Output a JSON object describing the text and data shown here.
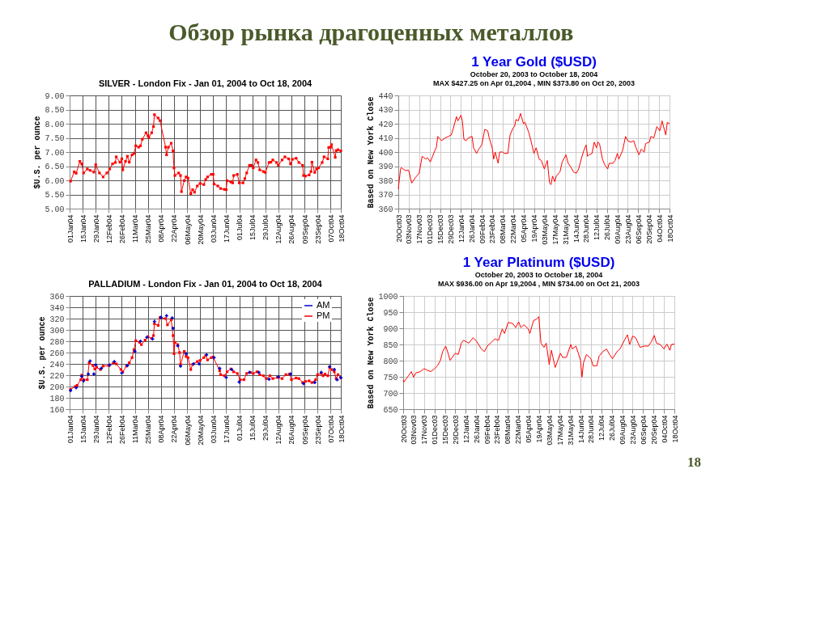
{
  "chart_data": [
    {
      "type": "other",
      "title": "Обзор рынка драгоценных металлов",
      "annotations": [
        "18"
      ]
    },
    {
      "type": "line",
      "title": "SILVER - London Fix - Jan 01, 2004 to Oct 18, 2004",
      "ylabel": "$U.S. per ounce",
      "grid": true,
      "marker": "square",
      "xlim": [
        "2004-01-01",
        "2004-10-18"
      ],
      "xticks": [
        {
          "value": "2004-01-01",
          "label": "01Jan04"
        },
        {
          "value": "2004-01-15",
          "label": "15Jan04"
        },
        {
          "value": "2004-01-29",
          "label": "29Jan04"
        },
        {
          "value": "2004-02-12",
          "label": "12Feb04"
        },
        {
          "value": "2004-02-26",
          "label": "26Feb04"
        },
        {
          "value": "2004-03-11",
          "label": "11Mar04"
        },
        {
          "value": "2004-03-25",
          "label": "25Mar04"
        },
        {
          "value": "2004-04-08",
          "label": "08Apr04"
        },
        {
          "value": "2004-04-22",
          "label": "22Apr04"
        },
        {
          "value": "2004-05-06",
          "label": "06May04"
        },
        {
          "value": "2004-05-20",
          "label": "20May04"
        },
        {
          "value": "2004-06-03",
          "label": "03Jun04"
        },
        {
          "value": "2004-06-17",
          "label": "17Jun04"
        },
        {
          "value": "2004-07-01",
          "label": "01Jul04"
        },
        {
          "value": "2004-07-15",
          "label": "15Jul04"
        },
        {
          "value": "2004-07-29",
          "label": "29Jul04"
        },
        {
          "value": "2004-08-12",
          "label": "12Aug04"
        },
        {
          "value": "2004-08-26",
          "label": "26Aug04"
        },
        {
          "value": "2004-09-09",
          "label": "09Sep04"
        },
        {
          "value": "2004-09-23",
          "label": "23Sep04"
        },
        {
          "value": "2004-10-07",
          "label": "07Oct04"
        },
        {
          "value": "2004-10-18",
          "label": "18Oct04"
        }
      ],
      "ylim": [
        5,
        9
      ],
      "yticks": [
        {
          "value": 5,
          "label": "5.00"
        },
        {
          "value": 5.5,
          "label": "5.50"
        },
        {
          "value": 6,
          "label": "6.00"
        },
        {
          "value": 6.5,
          "label": "6.50"
        },
        {
          "value": 7,
          "label": "7.00"
        },
        {
          "value": 7.5,
          "label": "7.50"
        },
        {
          "value": 8,
          "label": "8.00"
        },
        {
          "value": 8.5,
          "label": "8.50"
        },
        {
          "value": 9,
          "label": "9.00"
        }
      ],
      "series": [
        {
          "color": "#ff0000",
          "x": [
            "2004-01-02",
            "2004-01-06",
            "2004-01-08",
            "2004-01-12",
            "2004-01-14",
            "2004-01-16",
            "2004-01-20",
            "2004-01-23",
            "2004-01-27",
            "2004-01-29",
            "2004-02-02",
            "2004-02-06",
            "2004-02-10",
            "2004-02-13",
            "2004-02-16",
            "2004-02-19",
            "2004-02-20",
            "2004-02-24",
            "2004-02-26",
            "2004-02-27",
            "2004-03-01",
            "2004-03-03",
            "2004-03-05",
            "2004-03-08",
            "2004-03-10",
            "2004-03-12",
            "2004-03-15",
            "2004-03-17",
            "2004-03-19",
            "2004-03-23",
            "2004-03-25",
            "2004-03-26",
            "2004-03-29",
            "2004-03-31",
            "2004-04-01",
            "2004-04-05",
            "2004-04-07",
            "2004-04-13",
            "2004-04-14",
            "2004-04-16",
            "2004-04-19",
            "2004-04-21",
            "2004-04-22",
            "2004-04-23",
            "2004-04-27",
            "2004-04-29",
            "2004-04-30",
            "2004-05-03",
            "2004-05-05",
            "2004-05-07",
            "2004-05-10",
            "2004-05-12",
            "2004-05-14",
            "2004-05-17",
            "2004-05-20",
            "2004-05-24",
            "2004-05-26",
            "2004-05-28",
            "2004-06-01",
            "2004-06-03",
            "2004-06-04",
            "2004-06-08",
            "2004-06-11",
            "2004-06-15",
            "2004-06-17",
            "2004-06-18",
            "2004-06-22",
            "2004-06-24",
            "2004-06-25",
            "2004-06-29",
            "2004-07-01",
            "2004-07-05",
            "2004-07-07",
            "2004-07-09",
            "2004-07-12",
            "2004-07-14",
            "2004-07-16",
            "2004-07-19",
            "2004-07-21",
            "2004-07-23",
            "2004-07-27",
            "2004-07-29",
            "2004-08-02",
            "2004-08-04",
            "2004-08-06",
            "2004-08-10",
            "2004-08-12",
            "2004-08-16",
            "2004-08-19",
            "2004-08-23",
            "2004-08-25",
            "2004-08-27",
            "2004-08-31",
            "2004-09-03",
            "2004-09-07",
            "2004-09-08",
            "2004-09-10",
            "2004-09-14",
            "2004-09-16",
            "2004-09-17",
            "2004-09-20",
            "2004-09-22",
            "2004-09-24",
            "2004-09-28",
            "2004-09-30",
            "2004-10-04",
            "2004-10-05",
            "2004-10-07",
            "2004-10-08",
            "2004-10-12",
            "2004-10-13",
            "2004-10-15",
            "2004-10-18"
          ],
          "values": [
            5.97,
            6.3,
            6.25,
            6.67,
            6.58,
            6.26,
            6.4,
            6.35,
            6.29,
            6.55,
            6.26,
            6.12,
            6.26,
            6.4,
            6.58,
            6.63,
            6.83,
            6.64,
            6.76,
            6.37,
            6.67,
            6.85,
            6.64,
            6.9,
            6.95,
            7.22,
            7.17,
            7.22,
            7.45,
            7.68,
            7.58,
            7.51,
            7.68,
            7.9,
            8.32,
            8.2,
            8.11,
            7.17,
            6.9,
            7.17,
            7.31,
            7.04,
            6.44,
            6.17,
            6.26,
            6.17,
            5.6,
            5.99,
            6.12,
            6.08,
            5.53,
            5.67,
            5.58,
            5.8,
            5.89,
            5.85,
            6.03,
            6.12,
            6.21,
            6.21,
            5.87,
            5.8,
            5.71,
            5.68,
            5.67,
            5.99,
            5.94,
            5.91,
            6.17,
            6.21,
            5.91,
            5.91,
            6.06,
            6.26,
            6.53,
            6.53,
            6.44,
            6.72,
            6.63,
            6.37,
            6.31,
            6.28,
            6.63,
            6.64,
            6.72,
            6.63,
            6.53,
            6.72,
            6.83,
            6.76,
            6.58,
            6.74,
            6.78,
            6.63,
            6.53,
            6.17,
            6.15,
            6.19,
            6.31,
            6.64,
            6.28,
            6.4,
            6.44,
            6.63,
            6.83,
            6.76,
            7.16,
            7.17,
            7.26,
            6.81,
            7.05,
            7.08,
            7.04
          ]
        }
      ]
    },
    {
      "type": "line",
      "title": "1 Year Gold ($USD)",
      "subtitle": "October 20, 2003 to October 18, 2004",
      "annotations": [
        "MAX $427.25 on Apr 01,2004 , MIN $373.80 on Oct 20, 2003"
      ],
      "ylabel": "Based on New York Close",
      "grid": true,
      "xlim": [
        "2003-10-20",
        "2004-10-18"
      ],
      "xticks": [
        {
          "value": "2003-10-20",
          "label": "20Oct03"
        },
        {
          "value": "2003-11-03",
          "label": "03Nov03"
        },
        {
          "value": "2003-11-17",
          "label": "17Nov03"
        },
        {
          "value": "2003-12-01",
          "label": "01Dec03"
        },
        {
          "value": "2003-12-15",
          "label": "15Dec03"
        },
        {
          "value": "2003-12-29",
          "label": "29Dec03"
        },
        {
          "value": "2004-01-12",
          "label": "12Jan04"
        },
        {
          "value": "2004-01-26",
          "label": "26Jan04"
        },
        {
          "value": "2004-02-09",
          "label": "09Feb04"
        },
        {
          "value": "2004-02-23",
          "label": "23Feb04"
        },
        {
          "value": "2004-03-08",
          "label": "08Mar04"
        },
        {
          "value": "2004-03-22",
          "label": "22Mar04"
        },
        {
          "value": "2004-04-05",
          "label": "05Apr04"
        },
        {
          "value": "2004-04-19",
          "label": "19Apr04"
        },
        {
          "value": "2004-05-03",
          "label": "03May04"
        },
        {
          "value": "2004-05-17",
          "label": "17May04"
        },
        {
          "value": "2004-05-31",
          "label": "31May04"
        },
        {
          "value": "2004-06-14",
          "label": "14Jun04"
        },
        {
          "value": "2004-06-28",
          "label": "28Jun04"
        },
        {
          "value": "2004-07-12",
          "label": "12Jul04"
        },
        {
          "value": "2004-07-26",
          "label": "26Jul04"
        },
        {
          "value": "2004-08-09",
          "label": "09Aug04"
        },
        {
          "value": "2004-08-23",
          "label": "23Aug04"
        },
        {
          "value": "2004-09-06",
          "label": "06Sep04"
        },
        {
          "value": "2004-09-20",
          "label": "20Sep04"
        },
        {
          "value": "2004-10-04",
          "label": "04Oct04"
        },
        {
          "value": "2004-10-18",
          "label": "18Oct04"
        }
      ],
      "ylim": [
        360,
        440
      ],
      "yticks": [
        360,
        370,
        380,
        390,
        400,
        410,
        420,
        430,
        440
      ],
      "series": [
        {
          "color": "#ff0000",
          "x": [
            "2003-10-20",
            "2003-10-23",
            "2003-10-24",
            "2003-10-29",
            "2003-11-03",
            "2003-11-07",
            "2003-11-12",
            "2003-11-17",
            "2003-11-21",
            "2003-11-26",
            "2003-11-28",
            "2003-12-02",
            "2003-12-05",
            "2003-12-08",
            "2003-12-10",
            "2003-12-12",
            "2003-12-17",
            "2003-12-22",
            "2003-12-26",
            "2003-12-30",
            "2004-01-02",
            "2004-01-06",
            "2004-01-08",
            "2004-01-12",
            "2004-01-14",
            "2004-01-16",
            "2004-01-19",
            "2004-01-22",
            "2004-01-27",
            "2004-01-29",
            "2004-02-02",
            "2004-02-05",
            "2004-02-09",
            "2004-02-13",
            "2004-02-17",
            "2004-02-19",
            "2004-02-23",
            "2004-02-25",
            "2004-02-27",
            "2004-03-02",
            "2004-03-04",
            "2004-03-08",
            "2004-03-10",
            "2004-03-15",
            "2004-03-18",
            "2004-03-22",
            "2004-03-24",
            "2004-03-26",
            "2004-03-29",
            "2004-04-01",
            "2004-04-05",
            "2004-04-07",
            "2004-04-12",
            "2004-04-15",
            "2004-04-19",
            "2004-04-22",
            "2004-04-26",
            "2004-04-29",
            "2004-05-03",
            "2004-05-05",
            "2004-05-07",
            "2004-05-10",
            "2004-05-12",
            "2004-05-14",
            "2004-05-17",
            "2004-05-19",
            "2004-05-24",
            "2004-05-27",
            "2004-06-01",
            "2004-06-04",
            "2004-06-08",
            "2004-06-11",
            "2004-06-15",
            "2004-06-18",
            "2004-06-22",
            "2004-06-25",
            "2004-06-28",
            "2004-06-30",
            "2004-07-02",
            "2004-07-06",
            "2004-07-09",
            "2004-07-12",
            "2004-07-14",
            "2004-07-16",
            "2004-07-20",
            "2004-07-23",
            "2004-07-27",
            "2004-07-29",
            "2004-08-03",
            "2004-08-06",
            "2004-08-09",
            "2004-08-11",
            "2004-08-16",
            "2004-08-20",
            "2004-08-23",
            "2004-08-27",
            "2004-08-31",
            "2004-09-03",
            "2004-09-07",
            "2004-09-10",
            "2004-09-14",
            "2004-09-16",
            "2004-09-21",
            "2004-09-23",
            "2004-09-27",
            "2004-10-01",
            "2004-10-05",
            "2004-10-08",
            "2004-10-11",
            "2004-10-13",
            "2004-10-15",
            "2004-10-18"
          ],
          "values": [
            373.8,
            388,
            389,
            387,
            387,
            378,
            382,
            385,
            397,
            395,
            396,
            393,
            397,
            401,
            403,
            411,
            408,
            410,
            411,
            412,
            417,
            425,
            422,
            426,
            422,
            409,
            408,
            410,
            411,
            403,
            399,
            402,
            405,
            416,
            415,
            410,
            403,
            395,
            400,
            392,
            400,
            400,
            399,
            399,
            412,
            417,
            418,
            423,
            422,
            427.25,
            420,
            421,
            414,
            408,
            399,
            403,
            395,
            394,
            388,
            391,
            394,
            378,
            377,
            383,
            379,
            383,
            386,
            393,
            398,
            392,
            389,
            386,
            385,
            388,
            396,
            401,
            405,
            397,
            398,
            399,
            407,
            403,
            407,
            406,
            395,
            391,
            388,
            392,
            392,
            394,
            399,
            395,
            401,
            411,
            408,
            407,
            408,
            403,
            398,
            402,
            400,
            406,
            407,
            411,
            410,
            418,
            415,
            422,
            416,
            412,
            421,
            420
          ]
        }
      ]
    },
    {
      "type": "line",
      "title": "PALLADIUM - London Fix - Jan 01, 2004 to Oct 18, 2004",
      "ylabel": "$U.S. per ounce",
      "grid": true,
      "legend": "top right",
      "xlim": [
        "2004-01-01",
        "2004-10-18"
      ],
      "xticks": [
        {
          "value": "2004-01-01",
          "label": "01Jan04"
        },
        {
          "value": "2004-01-15",
          "label": "15Jan04"
        },
        {
          "value": "2004-01-29",
          "label": "29Jan04"
        },
        {
          "value": "2004-02-12",
          "label": "12Feb04"
        },
        {
          "value": "2004-02-26",
          "label": "26Feb04"
        },
        {
          "value": "2004-03-11",
          "label": "11Mar04"
        },
        {
          "value": "2004-03-25",
          "label": "25Mar04"
        },
        {
          "value": "2004-04-08",
          "label": "08Apr04"
        },
        {
          "value": "2004-04-22",
          "label": "22Apr04"
        },
        {
          "value": "2004-05-06",
          "label": "06May04"
        },
        {
          "value": "2004-05-20",
          "label": "20May04"
        },
        {
          "value": "2004-06-03",
          "label": "03Jun04"
        },
        {
          "value": "2004-06-17",
          "label": "17Jun04"
        },
        {
          "value": "2004-07-01",
          "label": "01Jul04"
        },
        {
          "value": "2004-07-15",
          "label": "15Jul04"
        },
        {
          "value": "2004-07-29",
          "label": "29Jul04"
        },
        {
          "value": "2004-08-12",
          "label": "12Aug04"
        },
        {
          "value": "2004-08-26",
          "label": "26Aug04"
        },
        {
          "value": "2004-09-09",
          "label": "09Sep04"
        },
        {
          "value": "2004-09-23",
          "label": "23Sep04"
        },
        {
          "value": "2004-10-07",
          "label": "07Oct04"
        },
        {
          "value": "2004-10-18",
          "label": "18Oct04"
        }
      ],
      "ylim": [
        160,
        360
      ],
      "yticks": [
        160,
        180,
        200,
        220,
        240,
        260,
        280,
        300,
        320,
        340,
        360
      ],
      "series": [
        {
          "name": "AM",
          "type": "scatter",
          "marker": "cross",
          "color": "#0000cc",
          "x": [
            "2004-01-02",
            "2004-01-08",
            "2004-01-14",
            "2004-01-16",
            "2004-01-21",
            "2004-01-23",
            "2004-01-27",
            "2004-01-29",
            "2004-02-04",
            "2004-02-13",
            "2004-02-18",
            "2004-02-26",
            "2004-03-03",
            "2004-03-11",
            "2004-03-17",
            "2004-03-24",
            "2004-03-30",
            "2004-04-01",
            "2004-04-08",
            "2004-04-14",
            "2004-04-20",
            "2004-04-21",
            "2004-04-26",
            "2004-04-29",
            "2004-05-05",
            "2004-05-13",
            "2004-05-19",
            "2004-05-27",
            "2004-06-04",
            "2004-06-10",
            "2004-06-17",
            "2004-06-23",
            "2004-07-01",
            "2004-07-12",
            "2004-07-22",
            "2004-08-02",
            "2004-08-12",
            "2004-08-25",
            "2004-09-08",
            "2004-09-20",
            "2004-09-27",
            "2004-10-06",
            "2004-10-11",
            "2004-10-14",
            "2004-10-18"
          ],
          "values": [
            193,
            198,
            218,
            210,
            222,
            245,
            222,
            238,
            232,
            238,
            244,
            224,
            237,
            262,
            280,
            287,
            284,
            315,
            322,
            325,
            321,
            303,
            272,
            236,
            258,
            240,
            240,
            256,
            251,
            232,
            216,
            230,
            208,
            225,
            225,
            213,
            217,
            222,
            205,
            207,
            225,
            235,
            230,
            212,
            216
          ]
        },
        {
          "name": "PM",
          "type": "line",
          "marker": "square",
          "color": "#ff0000",
          "x": [
            "2004-01-02",
            "2004-01-07",
            "2004-01-09",
            "2004-01-13",
            "2004-01-14",
            "2004-01-16",
            "2004-01-20",
            "2004-01-22",
            "2004-01-26",
            "2004-01-28",
            "2004-01-30",
            "2004-02-03",
            "2004-02-06",
            "2004-02-12",
            "2004-02-17",
            "2004-02-20",
            "2004-02-25",
            "2004-02-27",
            "2004-03-02",
            "2004-03-05",
            "2004-03-08",
            "2004-03-10",
            "2004-03-12",
            "2004-03-16",
            "2004-03-18",
            "2004-03-22",
            "2004-03-25",
            "2004-03-29",
            "2004-03-31",
            "2004-04-01",
            "2004-04-05",
            "2004-04-07",
            "2004-04-13",
            "2004-04-15",
            "2004-04-19",
            "2004-04-21",
            "2004-04-22",
            "2004-04-23",
            "2004-04-26",
            "2004-04-28",
            "2004-04-29",
            "2004-05-03",
            "2004-05-05",
            "2004-05-07",
            "2004-05-10",
            "2004-05-12",
            "2004-05-17",
            "2004-05-20",
            "2004-05-24",
            "2004-05-26",
            "2004-05-28",
            "2004-06-01",
            "2004-06-03",
            "2004-06-10",
            "2004-06-11",
            "2004-06-15",
            "2004-06-18",
            "2004-06-22",
            "2004-06-25",
            "2004-06-29",
            "2004-07-02",
            "2004-07-06",
            "2004-07-09",
            "2004-07-13",
            "2004-07-16",
            "2004-07-20",
            "2004-07-23",
            "2004-07-27",
            "2004-07-30",
            "2004-08-03",
            "2004-08-06",
            "2004-08-11",
            "2004-08-16",
            "2004-08-20",
            "2004-08-24",
            "2004-08-26",
            "2004-08-31",
            "2004-09-03",
            "2004-09-07",
            "2004-09-10",
            "2004-09-14",
            "2004-09-17",
            "2004-09-21",
            "2004-09-23",
            "2004-09-27",
            "2004-09-29",
            "2004-10-01",
            "2004-10-04",
            "2004-10-06",
            "2004-10-08",
            "2004-10-11",
            "2004-10-13",
            "2004-10-15",
            "2004-10-18"
          ],
          "values": [
            195,
            200,
            202,
            212,
            220,
            212,
            212,
            242,
            237,
            231,
            234,
            230,
            236,
            237,
            242,
            240,
            230,
            226,
            236,
            242,
            251,
            265,
            281,
            278,
            274,
            282,
            288,
            285,
            290,
            311,
            308,
            322,
            320,
            309,
            318,
            290,
            258,
            278,
            274,
            260,
            239,
            262,
            253,
            251,
            230,
            239,
            244,
            246,
            251,
            255,
            247,
            251,
            252,
            228,
            221,
            219,
            226,
            231,
            226,
            223,
            212,
            212,
            223,
            225,
            223,
            226,
            221,
            219,
            214,
            219,
            214,
            216,
            214,
            221,
            222,
            212,
            215,
            214,
            207,
            209,
            210,
            207,
            212,
            221,
            223,
            219,
            222,
            219,
            234,
            230,
            226,
            214,
            221,
            215
          ]
        }
      ]
    },
    {
      "type": "line",
      "title": "1 Year Platinum ($USD)",
      "subtitle": "October 20, 2003 to October 18, 2004",
      "annotations": [
        "MAX $936.00 on Apr 19,2004 , MIN $734.00 on Oct 21, 2003"
      ],
      "ylabel": "Based on New York Close",
      "grid": true,
      "xlim": [
        "2003-10-20",
        "2004-10-18"
      ],
      "xticks": [
        {
          "value": "2003-10-20",
          "label": "20Oct03"
        },
        {
          "value": "2003-11-03",
          "label": "03Nov03"
        },
        {
          "value": "2003-11-17",
          "label": "17Nov03"
        },
        {
          "value": "2003-12-01",
          "label": "01Dec03"
        },
        {
          "value": "2003-12-15",
          "label": "15Dec03"
        },
        {
          "value": "2003-12-29",
          "label": "29Dec03"
        },
        {
          "value": "2004-01-12",
          "label": "12Jan04"
        },
        {
          "value": "2004-01-26",
          "label": "26Jan04"
        },
        {
          "value": "2004-02-09",
          "label": "09Feb04"
        },
        {
          "value": "2004-02-23",
          "label": "23Feb04"
        },
        {
          "value": "2004-03-08",
          "label": "08Mar04"
        },
        {
          "value": "2004-03-22",
          "label": "22Mar04"
        },
        {
          "value": "2004-04-05",
          "label": "05Apr04"
        },
        {
          "value": "2004-04-19",
          "label": "19Apr04"
        },
        {
          "value": "2004-05-03",
          "label": "03May04"
        },
        {
          "value": "2004-05-17",
          "label": "17May04"
        },
        {
          "value": "2004-05-31",
          "label": "31May04"
        },
        {
          "value": "2004-06-14",
          "label": "14Jun04"
        },
        {
          "value": "2004-06-28",
          "label": "28Jun04"
        },
        {
          "value": "2004-07-12",
          "label": "12Jul04"
        },
        {
          "value": "2004-07-26",
          "label": "26Jul04"
        },
        {
          "value": "2004-08-09",
          "label": "09Aug04"
        },
        {
          "value": "2004-08-23",
          "label": "23Aug04"
        },
        {
          "value": "2004-09-06",
          "label": "06Sep04"
        },
        {
          "value": "2004-09-20",
          "label": "20Sep04"
        },
        {
          "value": "2004-10-04",
          "label": "04Oct04"
        },
        {
          "value": "2004-10-18",
          "label": "18Oct04"
        }
      ],
      "ylim": [
        650,
        1000
      ],
      "yticks": [
        650,
        700,
        750,
        800,
        850,
        900,
        950,
        1000
      ],
      "series": [
        {
          "color": "#ff0000",
          "x": [
            "2003-10-20",
            "2003-10-21",
            "2003-10-27",
            "2003-10-31",
            "2003-11-03",
            "2003-11-06",
            "2003-11-12",
            "2003-11-17",
            "2003-11-21",
            "2003-11-26",
            "2003-12-01",
            "2003-12-05",
            "2003-12-09",
            "2003-12-12",
            "2003-12-16",
            "2003-12-19",
            "2003-12-22",
            "2003-12-29",
            "2004-01-02",
            "2004-01-06",
            "2004-01-09",
            "2004-01-13",
            "2004-01-16",
            "2004-01-22",
            "2004-01-27",
            "2004-02-02",
            "2004-02-06",
            "2004-02-10",
            "2004-02-16",
            "2004-02-20",
            "2004-02-25",
            "2004-03-01",
            "2004-03-04",
            "2004-03-09",
            "2004-03-15",
            "2004-03-19",
            "2004-03-23",
            "2004-03-26",
            "2004-03-30",
            "2004-04-05",
            "2004-04-07",
            "2004-04-12",
            "2004-04-16",
            "2004-04-19",
            "2004-04-22",
            "2004-04-26",
            "2004-04-29",
            "2004-05-03",
            "2004-05-06",
            "2004-05-11",
            "2004-05-14",
            "2004-05-18",
            "2004-05-21",
            "2004-05-26",
            "2004-06-01",
            "2004-06-03",
            "2004-06-08",
            "2004-06-14",
            "2004-06-16",
            "2004-06-18",
            "2004-06-22",
            "2004-06-28",
            "2004-07-01",
            "2004-07-06",
            "2004-07-09",
            "2004-07-14",
            "2004-07-19",
            "2004-07-23",
            "2004-07-27",
            "2004-08-02",
            "2004-08-06",
            "2004-08-12",
            "2004-08-16",
            "2004-08-19",
            "2004-08-23",
            "2004-08-27",
            "2004-09-02",
            "2004-09-07",
            "2004-09-13",
            "2004-09-17",
            "2004-09-21",
            "2004-09-24",
            "2004-09-29",
            "2004-10-04",
            "2004-10-08",
            "2004-10-12",
            "2004-10-14",
            "2004-10-18"
          ],
          "values": [
            740,
            734,
            753,
            766,
            749,
            762,
            766,
            775,
            771,
            766,
            775,
            784,
            801,
            828,
            845,
            825,
            801,
            823,
            819,
            854,
            863,
            858,
            854,
            871,
            858,
            836,
            828,
            845,
            858,
            867,
            863,
            898,
            884,
            918,
            915,
            902,
            920,
            902,
            911,
            898,
            884,
            924,
            928,
            936,
            854,
            841,
            854,
            788,
            832,
            779,
            797,
            823,
            810,
            810,
            850,
            836,
            845,
            801,
            749,
            793,
            819,
            806,
            784,
            784,
            814,
            828,
            836,
            819,
            806,
            828,
            836,
            863,
            880,
            850,
            876,
            871,
            841,
            845,
            845,
            858,
            878,
            854,
            850,
            836,
            851,
            832,
            850,
            851
          ]
        }
      ]
    }
  ]
}
